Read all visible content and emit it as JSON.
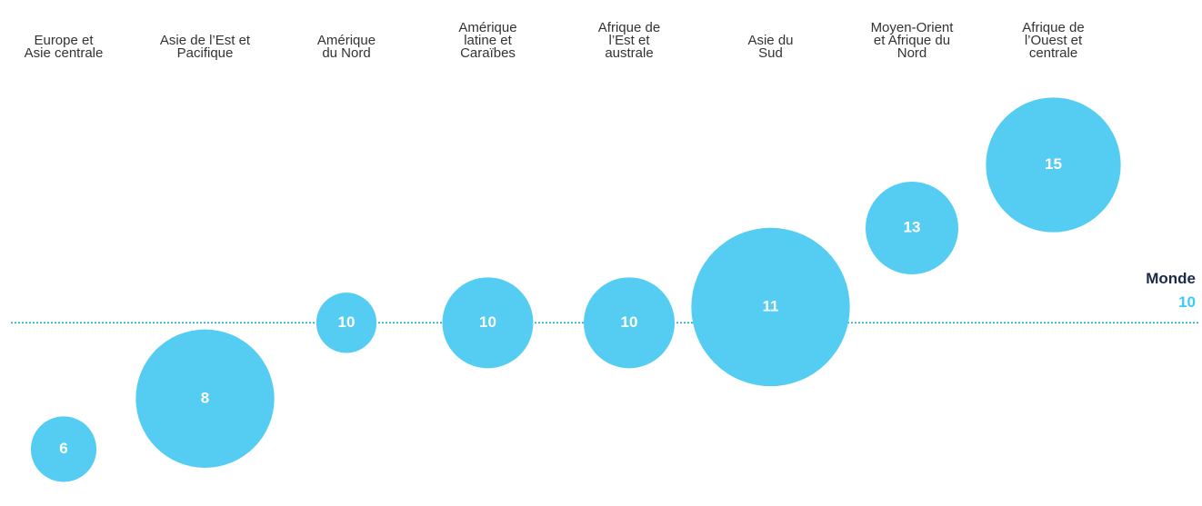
{
  "chart_data": {
    "type": "bubble",
    "categories": [
      "Europe et\nAsie centrale",
      "Asie de l’Est et\nPacifique",
      "Amérique\ndu Nord",
      "Amérique\nlatine et\nCaraïbes",
      "Afrique de\nl’Est et\naustrale",
      "Asie du\nSud",
      "Moyen-Orient\net Afrique du\nNord",
      "Afrique de\nl’Ouest et\ncentrale"
    ],
    "values": [
      6,
      7.6,
      10,
      10,
      10,
      10.5,
      13,
      15
    ],
    "value_labels": [
      "6",
      "8",
      "10",
      "10",
      "10",
      "11",
      "13",
      "15"
    ],
    "sizes": [
      13,
      58,
      11,
      25,
      25,
      76,
      26,
      55
    ],
    "color": "#55cdf3",
    "ylim": [
      4.2,
      17.2
    ],
    "reference": {
      "label": "Monde",
      "value": 10,
      "color": "#1fa3d6"
    }
  }
}
